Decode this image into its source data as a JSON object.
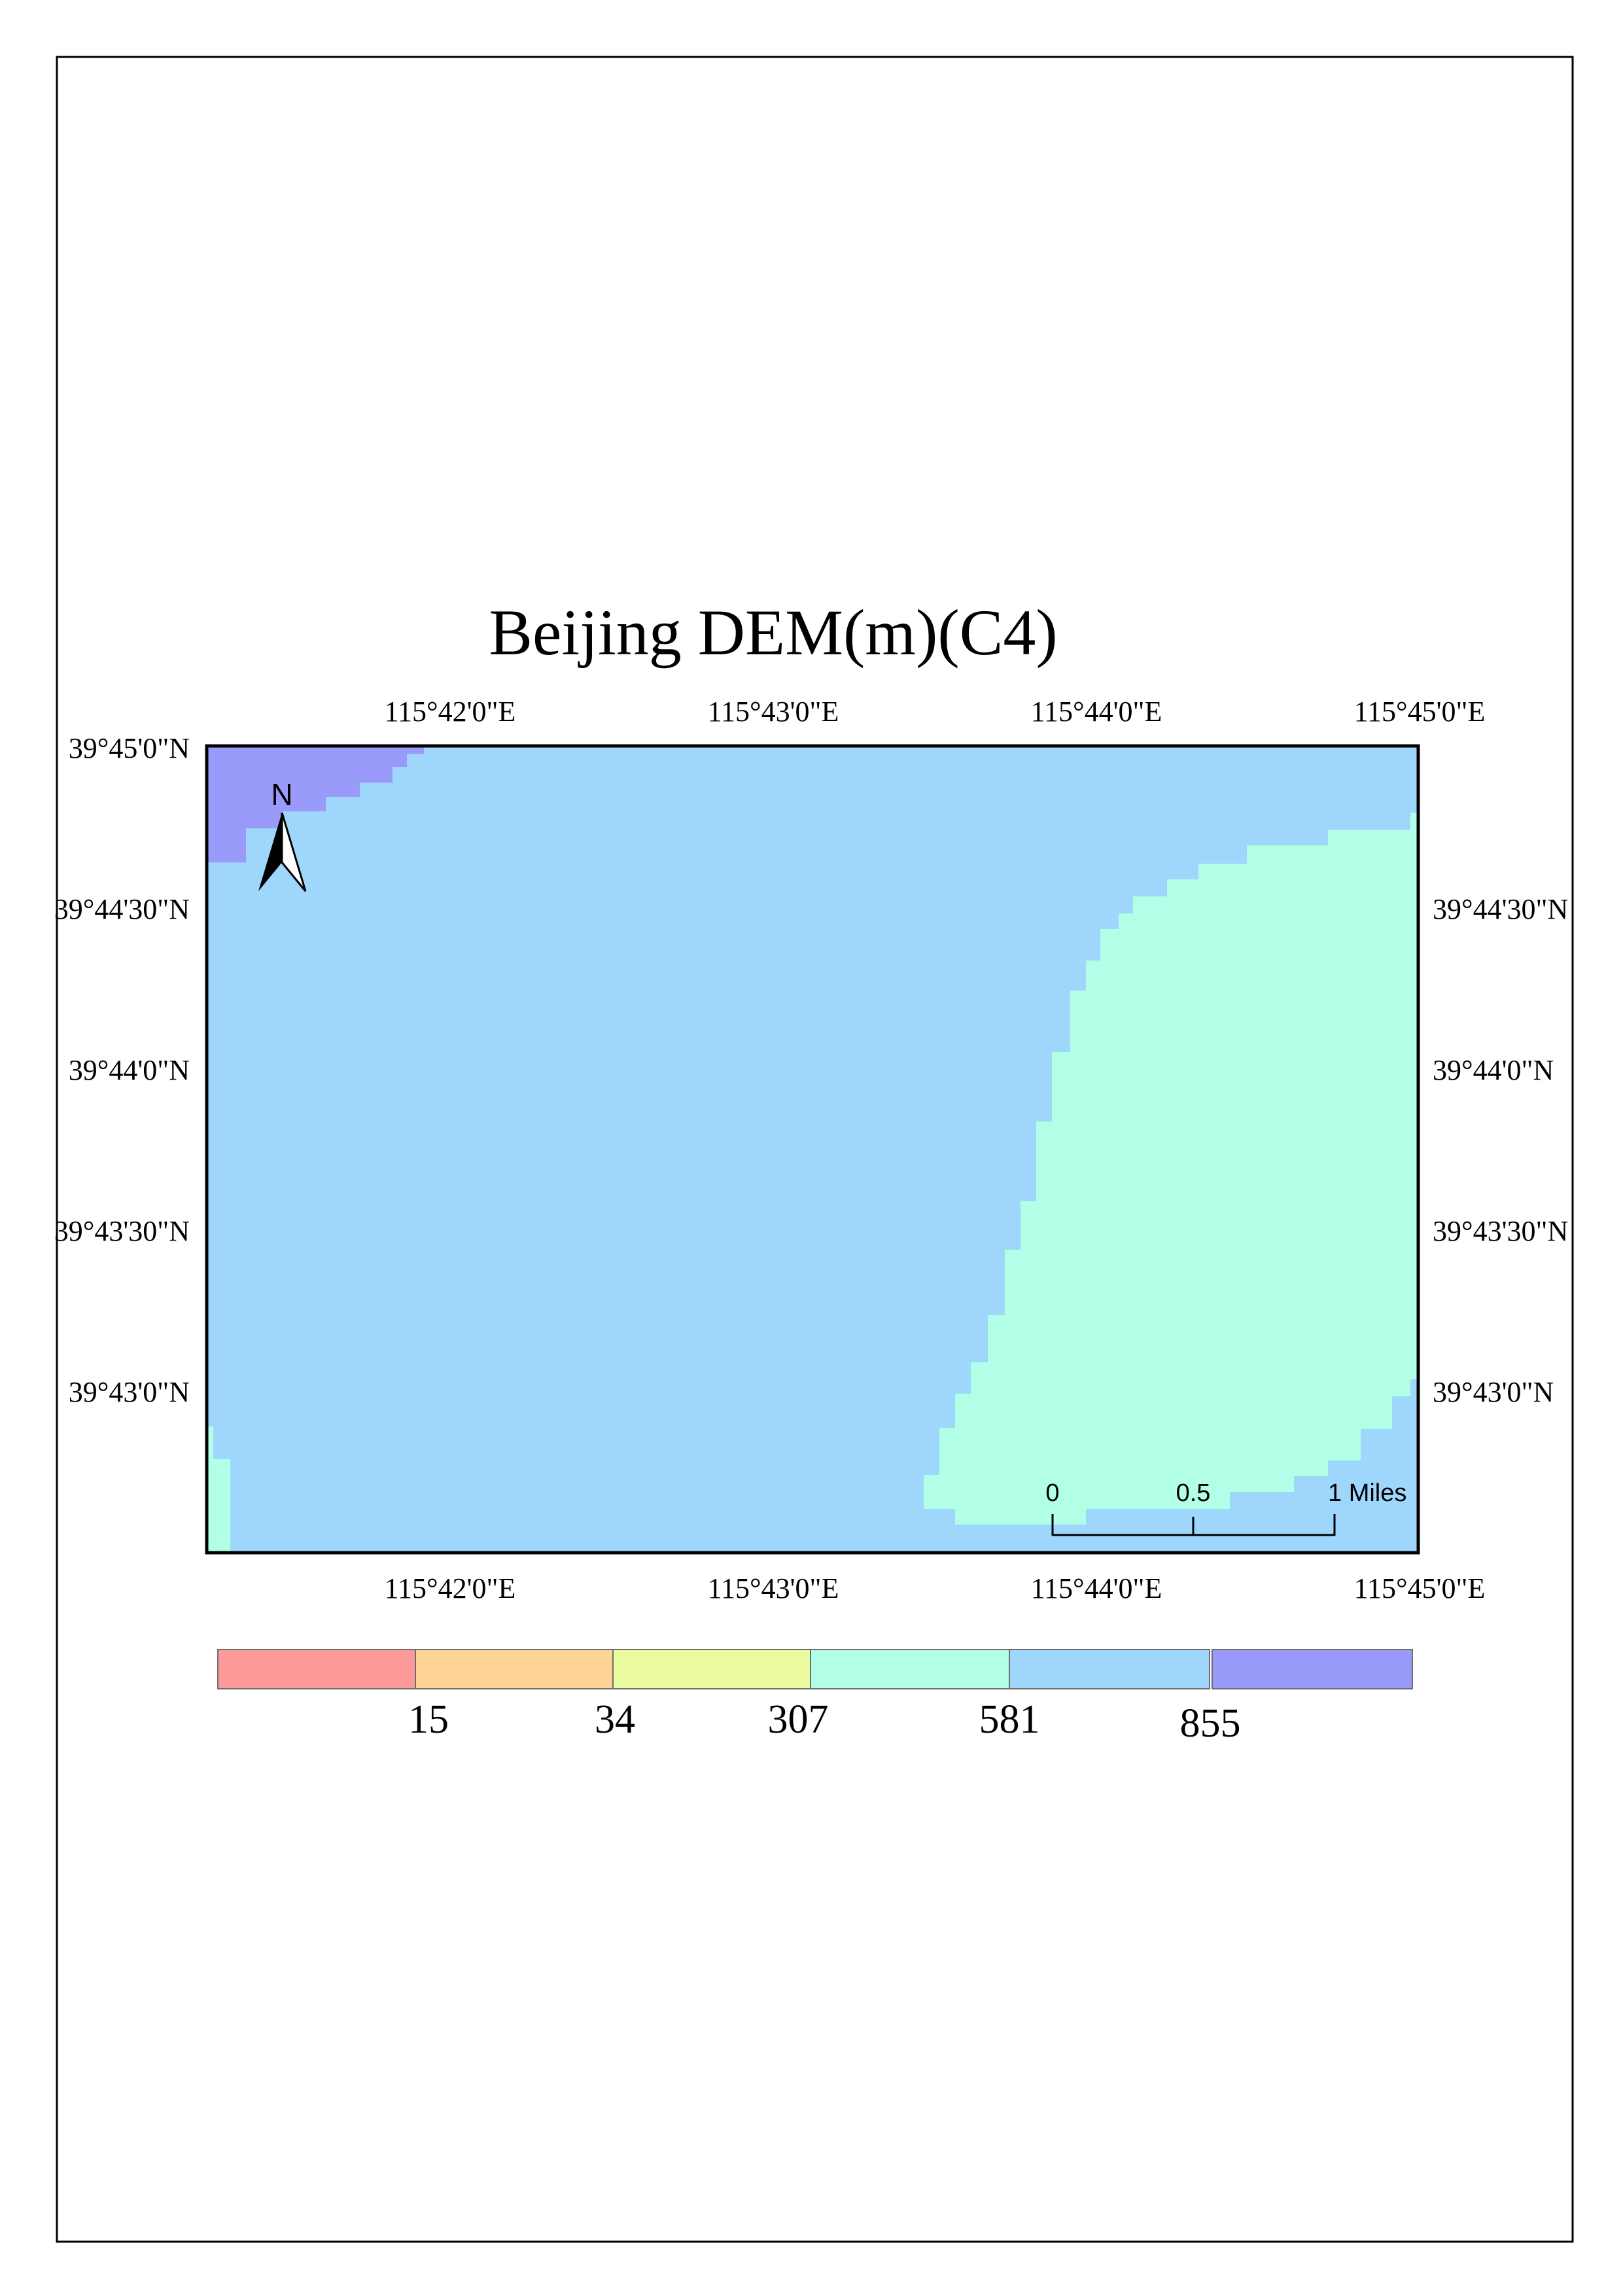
{
  "map": {
    "title": "Beijing DEM(m)(C4)",
    "top_ticks": [
      "115°42'0\"E",
      "115°43'0\"E",
      "115°44'0\"E",
      "115°45'0\"E"
    ],
    "bottom_ticks": [
      "115°42'0\"E",
      "115°43'0\"E",
      "115°44'0\"E",
      "115°45'0\"E"
    ],
    "left_ticks": [
      "39°45'0\"N",
      "39°44'30\"N",
      "39°44'0\"N",
      "39°43'30\"N",
      "39°43'0\"N"
    ],
    "right_ticks": [
      "39°44'30\"N",
      "39°44'0\"N",
      "39°43'30\"N",
      "39°43'0\"N"
    ],
    "north_arrow": {
      "label": "N",
      "icon": "north-arrow-icon"
    },
    "scale_bar": {
      "labels": [
        "0",
        "0.5",
        "1 Miles"
      ]
    },
    "legend": {
      "colors": [
        "#ff9a9a",
        "#ffd394",
        "#ebfca0",
        "#b2ffe8",
        "#9ed6fc",
        "#9a9afa"
      ],
      "breaks": [
        "15",
        "34",
        "307",
        "581",
        "855"
      ]
    },
    "elevation_colors": {
      "low_class": "#b2ffe8",
      "mid_class": "#9ed6fc",
      "high_class": "#9a9afa"
    }
  }
}
